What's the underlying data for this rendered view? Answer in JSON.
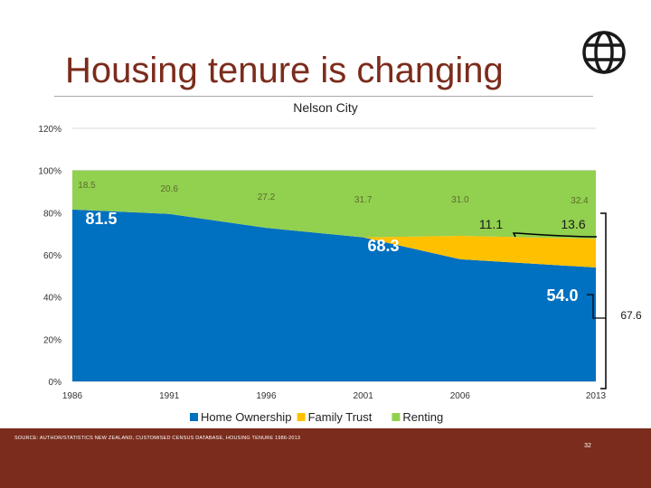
{
  "slide": {
    "title": "Housing tenure is changing",
    "source_note": "SOURCE: AUTHOR/STATISTICS NEW ZEALAND, CUSTOMISED CENSUS DATABASE, HOUSING TENURE 1986-2013",
    "page_number": "32"
  },
  "colors": {
    "home_ownership": "#0070c0",
    "family_trust": "#ffc000",
    "renting": "#92d050",
    "title": "#7b2c1c"
  },
  "chart_data": {
    "type": "area",
    "stacked": true,
    "percent_stacked": true,
    "title": "Nelson City",
    "x": [
      1986,
      1991,
      1996,
      2001,
      2006,
      2013
    ],
    "x_tick_labels": [
      "1986",
      "1991",
      "1996",
      "2001",
      "2006",
      "2013"
    ],
    "y_tick_labels": [
      "0%",
      "20%",
      "40%",
      "60%",
      "80%",
      "100%",
      "120%"
    ],
    "ylim": [
      0,
      120
    ],
    "y_unit": "%",
    "series": [
      {
        "name": "Home Ownership",
        "values": [
          81.5,
          79.4,
          72.8,
          68.3,
          57.9,
          54.0
        ]
      },
      {
        "name": "Family Trust",
        "values": [
          0,
          0,
          0,
          0,
          11.1,
          13.6
        ]
      },
      {
        "name": "Renting",
        "values": [
          18.5,
          20.6,
          27.2,
          31.7,
          31.0,
          32.4
        ]
      }
    ],
    "data_labels": [
      "18.5",
      "20.6",
      "27.2",
      "31.7",
      "31.0",
      "32.4"
    ],
    "annotations": [
      {
        "text": "81.5",
        "series": "Home Ownership",
        "year": 1986
      },
      {
        "text": "68.3",
        "series": "Home Ownership",
        "year": 2001
      },
      {
        "text": "54.0",
        "series": "Home Ownership",
        "year": 2013
      },
      {
        "text": "11.1",
        "series": "Family Trust",
        "year": 2006
      },
      {
        "text": "13.6",
        "series": "Family Trust",
        "year": 2013
      },
      {
        "text": "67.6",
        "series": "Home Ownership + Family Trust",
        "year": 2013
      }
    ],
    "legend": [
      "Home Ownership",
      "Family Trust",
      "Renting"
    ],
    "legend_position": "bottom"
  }
}
